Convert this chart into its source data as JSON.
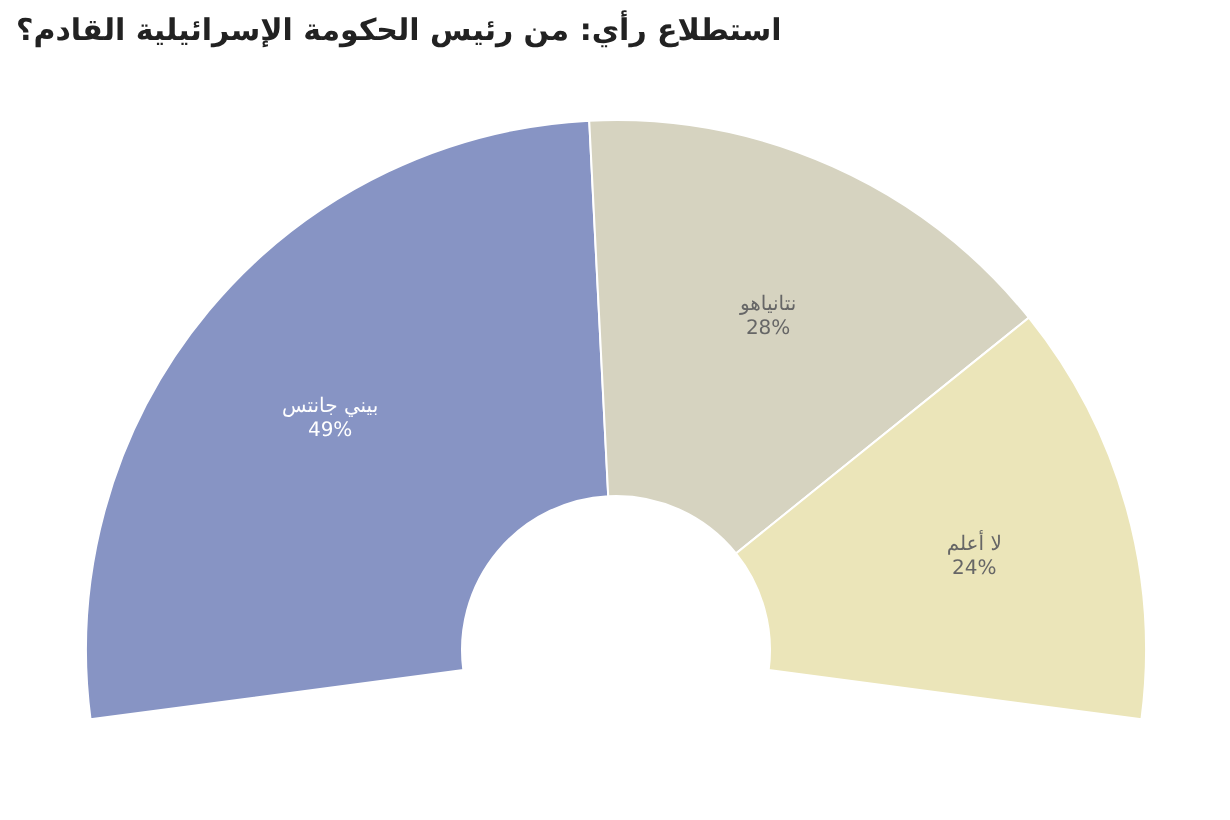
{
  "chart_data": {
    "type": "donut",
    "title": "استطلاع رأي: من رئيس الحكومة الإسرائيلية القادم؟",
    "categories": [
      "بيني جانتس",
      "نتانياهو",
      "لا أعلم"
    ],
    "values": [
      49,
      28,
      24
    ],
    "colors": [
      "#8794c4",
      "#d6d3c0",
      "#ebe5b9"
    ],
    "value_labels": [
      "49%",
      "28%",
      "24%"
    ]
  }
}
